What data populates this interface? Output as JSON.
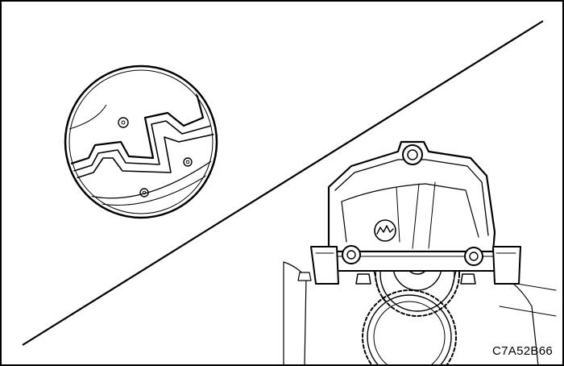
{
  "figure": {
    "code": "C7A52B66",
    "colors": {
      "ink": "#000000",
      "paper": "#ffffff",
      "shade": "#e6e6e6"
    },
    "icons": [
      "detail-magnifier-circle",
      "timing-chain-tensioner-assembly",
      "sprocket-gear"
    ]
  }
}
